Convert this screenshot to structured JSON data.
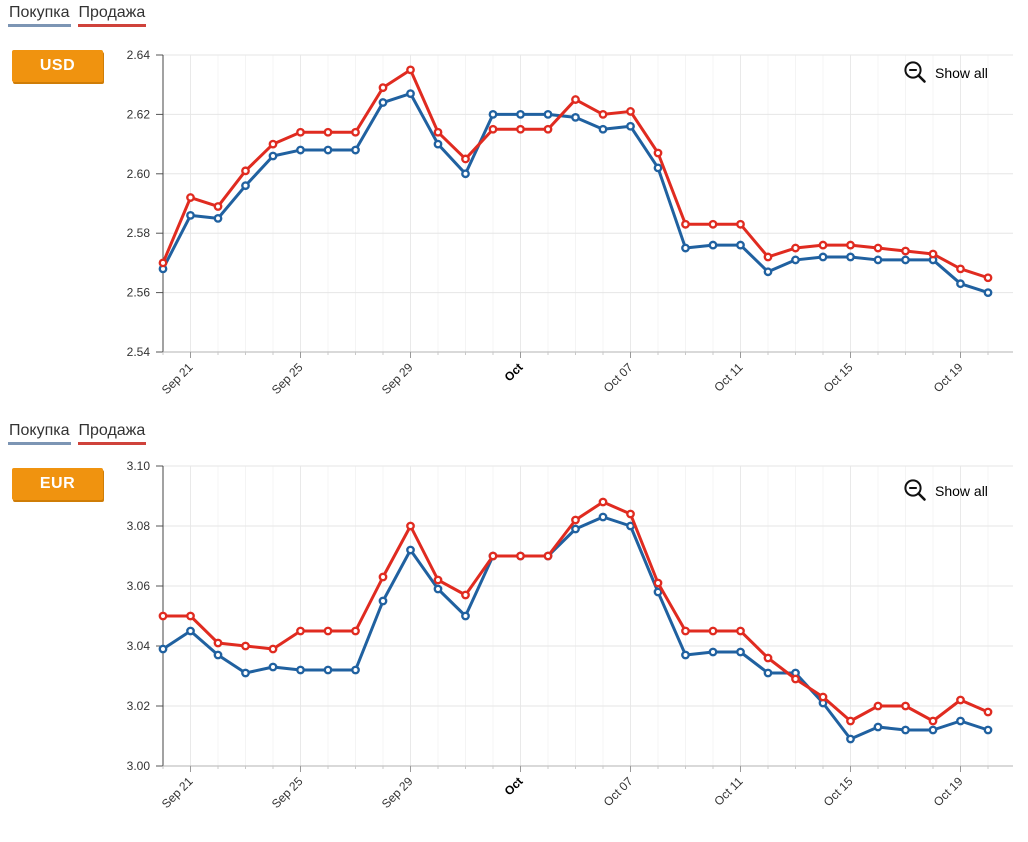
{
  "ui": {
    "show_all_label": "Show all",
    "badge_color": "#f0930f",
    "legend_text_color": "#333333",
    "axis_label_color": "#333333",
    "grid_color": "#e6e6e6",
    "minor_grid_color": "#f4f4f4"
  },
  "chart_data": [
    {
      "type": "line",
      "currency": "USD",
      "x": [
        "Sep 20",
        "Sep 21",
        "Sep 22",
        "Sep 23",
        "Sep 24",
        "Sep 25",
        "Sep 26",
        "Sep 27",
        "Sep 28",
        "Sep 29",
        "Sep 30",
        "Oct 01",
        "Oct 02",
        "Oct 03",
        "Oct 04",
        "Oct 05",
        "Oct 06",
        "Oct 07",
        "Oct 08",
        "Oct 09",
        "Oct 10",
        "Oct 11",
        "Oct 12",
        "Oct 13",
        "Oct 14",
        "Oct 15",
        "Oct 16",
        "Oct 17",
        "Oct 18",
        "Oct 19",
        "Oct 20"
      ],
      "x_ticks": [
        {
          "index": 1,
          "label": "Sep 21",
          "bold": false
        },
        {
          "index": 5,
          "label": "Sep 25",
          "bold": false
        },
        {
          "index": 9,
          "label": "Sep 29",
          "bold": false
        },
        {
          "index": 13,
          "label": "Oct",
          "bold": true
        },
        {
          "index": 17,
          "label": "Oct 07",
          "bold": false
        },
        {
          "index": 21,
          "label": "Oct 11",
          "bold": false
        },
        {
          "index": 25,
          "label": "Oct 15",
          "bold": false
        },
        {
          "index": 29,
          "label": "Oct 19",
          "bold": false
        }
      ],
      "ylim": [
        2.54,
        2.64
      ],
      "y_ticks": [
        2.54,
        2.56,
        2.58,
        2.6,
        2.62,
        2.64
      ],
      "legend_position": "top-left",
      "grid": true,
      "series": [
        {
          "name": "Покупка",
          "color": "#2061a0",
          "legend_color": "#7c95b4",
          "values": [
            2.568,
            2.586,
            2.585,
            2.596,
            2.606,
            2.608,
            2.608,
            2.608,
            2.624,
            2.627,
            2.61,
            2.6,
            2.62,
            2.62,
            2.62,
            2.619,
            2.615,
            2.616,
            2.602,
            2.575,
            2.576,
            2.576,
            2.567,
            2.571,
            2.572,
            2.572,
            2.571,
            2.571,
            2.571,
            2.563,
            2.56
          ]
        },
        {
          "name": "Продажа",
          "color": "#e02b20",
          "legend_color": "#cf423b",
          "values": [
            2.57,
            2.592,
            2.589,
            2.601,
            2.61,
            2.614,
            2.614,
            2.614,
            2.629,
            2.635,
            2.614,
            2.605,
            2.615,
            2.615,
            2.615,
            2.625,
            2.62,
            2.621,
            2.607,
            2.583,
            2.583,
            2.583,
            2.572,
            2.575,
            2.576,
            2.576,
            2.575,
            2.574,
            2.573,
            2.568,
            2.565
          ]
        }
      ]
    },
    {
      "type": "line",
      "currency": "EUR",
      "x": [
        "Sep 20",
        "Sep 21",
        "Sep 22",
        "Sep 23",
        "Sep 24",
        "Sep 25",
        "Sep 26",
        "Sep 27",
        "Sep 28",
        "Sep 29",
        "Sep 30",
        "Oct 01",
        "Oct 02",
        "Oct 03",
        "Oct 04",
        "Oct 05",
        "Oct 06",
        "Oct 07",
        "Oct 08",
        "Oct 09",
        "Oct 10",
        "Oct 11",
        "Oct 12",
        "Oct 13",
        "Oct 14",
        "Oct 15",
        "Oct 16",
        "Oct 17",
        "Oct 18",
        "Oct 19",
        "Oct 20"
      ],
      "x_ticks": [
        {
          "index": 1,
          "label": "Sep 21",
          "bold": false
        },
        {
          "index": 5,
          "label": "Sep 25",
          "bold": false
        },
        {
          "index": 9,
          "label": "Sep 29",
          "bold": false
        },
        {
          "index": 13,
          "label": "Oct",
          "bold": true
        },
        {
          "index": 17,
          "label": "Oct 07",
          "bold": false
        },
        {
          "index": 21,
          "label": "Oct 11",
          "bold": false
        },
        {
          "index": 25,
          "label": "Oct 15",
          "bold": false
        },
        {
          "index": 29,
          "label": "Oct 19",
          "bold": false
        }
      ],
      "ylim": [
        3.0,
        3.1
      ],
      "y_ticks": [
        3.0,
        3.02,
        3.04,
        3.06,
        3.08,
        3.1
      ],
      "legend_position": "top-left",
      "grid": true,
      "series": [
        {
          "name": "Покупка",
          "color": "#2061a0",
          "legend_color": "#7c95b4",
          "values": [
            3.039,
            3.045,
            3.037,
            3.031,
            3.033,
            3.032,
            3.032,
            3.032,
            3.055,
            3.072,
            3.059,
            3.05,
            3.07,
            3.07,
            3.07,
            3.079,
            3.083,
            3.08,
            3.058,
            3.037,
            3.038,
            3.038,
            3.031,
            3.031,
            3.021,
            3.009,
            3.013,
            3.012,
            3.012,
            3.015,
            3.012
          ]
        },
        {
          "name": "Продажа",
          "color": "#e02b20",
          "legend_color": "#cf423b",
          "values": [
            3.05,
            3.05,
            3.041,
            3.04,
            3.039,
            3.045,
            3.045,
            3.045,
            3.063,
            3.08,
            3.062,
            3.057,
            3.07,
            3.07,
            3.07,
            3.082,
            3.088,
            3.084,
            3.061,
            3.045,
            3.045,
            3.045,
            3.036,
            3.029,
            3.023,
            3.015,
            3.02,
            3.02,
            3.015,
            3.022,
            3.018
          ]
        }
      ]
    }
  ]
}
